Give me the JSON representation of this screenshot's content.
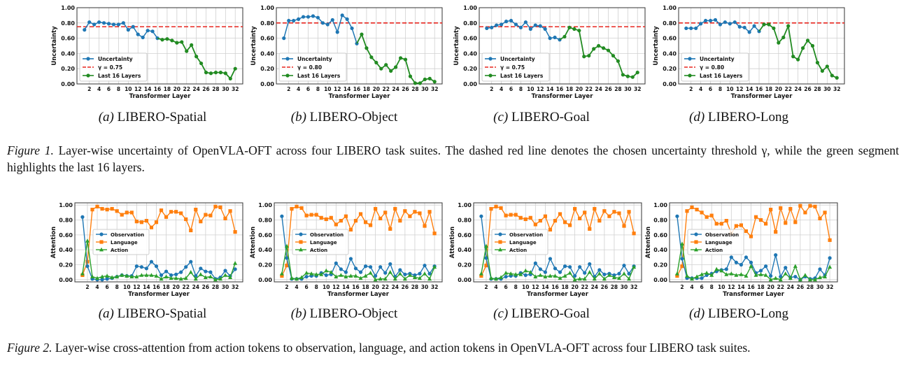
{
  "figure1": {
    "label": "Figure 1.",
    "caption": "Layer-wise uncertainty of OpenVLA-OFT across four LIBERO task suites. The dashed red line denotes the chosen uncertainty threshold γ, while the green segment highlights the last 16 layers.",
    "subfigures": [
      {
        "label": "(a)",
        "title": "LIBERO-Spatial"
      },
      {
        "label": "(b)",
        "title": "LIBERO-Object"
      },
      {
        "label": "(c)",
        "title": "LIBERO-Goal"
      },
      {
        "label": "(d)",
        "title": "LIBERO-Long"
      }
    ]
  },
  "figure2": {
    "label": "Figure 2.",
    "caption": "Layer-wise cross-attention from action tokens to observation, language, and action tokens in OpenVLA-OFT across four LIBERO task suites.",
    "subfigures": [
      {
        "label": "(a)",
        "title": "LIBERO-Spatial"
      },
      {
        "label": "(b)",
        "title": "LIBERO-Object"
      },
      {
        "label": "(c)",
        "title": "LIBERO-Goal"
      },
      {
        "label": "(d)",
        "title": "LIBERO-Long"
      }
    ]
  },
  "colors": {
    "blue": "#1f77b4",
    "orange": "#ff7f0e",
    "green": "#2ca02c",
    "darkgreen": "#228b22",
    "red": "#e8261f"
  },
  "chart_data": [
    {
      "type": "line",
      "xlabel": "Transformer Layer",
      "ylabel": "Uncertainty",
      "ylim": [
        0,
        1
      ],
      "yticks": [
        "0.00",
        "0.20",
        "0.40",
        "0.60",
        "0.80",
        "1.00"
      ],
      "xticks": [
        2,
        4,
        6,
        8,
        10,
        12,
        14,
        16,
        18,
        20,
        22,
        24,
        26,
        28,
        30,
        32
      ],
      "grid": true,
      "legend": "lower-left",
      "threshold": {
        "name": "γ = 0.75",
        "value": 0.75
      },
      "series": [
        {
          "name": "Uncertainty",
          "values": [
            0.71,
            0.81,
            0.78,
            0.81,
            0.8,
            0.79,
            0.78,
            0.78,
            0.8,
            0.71,
            0.75,
            0.65,
            0.61,
            0.7,
            0.69,
            0.6,
            0.58,
            0.59,
            0.57,
            0.54,
            0.55,
            0.43,
            0.51,
            0.36,
            0.27,
            0.15,
            0.14,
            0.15,
            0.15,
            0.14,
            0.07,
            0.2
          ]
        },
        {
          "name": "Last 16 Layers"
        }
      ]
    },
    {
      "type": "line",
      "xlabel": "Transformer Layer",
      "ylabel": "Uncertainty",
      "ylim": [
        0,
        1
      ],
      "yticks": [
        "0.00",
        "0.20",
        "0.40",
        "0.60",
        "0.80",
        "1.00"
      ],
      "xticks": [
        2,
        4,
        6,
        8,
        10,
        12,
        14,
        16,
        18,
        20,
        22,
        24,
        26,
        28,
        30,
        32
      ],
      "grid": true,
      "legend": "lower-left",
      "threshold": {
        "name": "γ = 0.80",
        "value": 0.8
      },
      "series": [
        {
          "name": "Uncertainty",
          "values": [
            0.6,
            0.83,
            0.83,
            0.85,
            0.88,
            0.88,
            0.89,
            0.87,
            0.8,
            0.78,
            0.84,
            0.68,
            0.9,
            0.85,
            0.73,
            0.53,
            0.65,
            0.47,
            0.35,
            0.28,
            0.2,
            0.25,
            0.17,
            0.22,
            0.34,
            0.32,
            0.1,
            0.01,
            0.01,
            0.06,
            0.07,
            0.03
          ]
        },
        {
          "name": "Last 16 Layers"
        }
      ]
    },
    {
      "type": "line",
      "xlabel": "Transformer Layer",
      "ylabel": "Uncertainty",
      "ylim": [
        0,
        1
      ],
      "yticks": [
        "0.00",
        "0.20",
        "0.40",
        "0.60",
        "0.80",
        "1.00"
      ],
      "xticks": [
        2,
        4,
        6,
        8,
        10,
        12,
        14,
        16,
        18,
        20,
        22,
        24,
        26,
        28,
        30,
        32
      ],
      "grid": true,
      "legend": "lower-left",
      "threshold": {
        "name": "γ = 0.75",
        "value": 0.75
      },
      "series": [
        {
          "name": "Uncertainty",
          "values": [
            0.73,
            0.74,
            0.77,
            0.78,
            0.82,
            0.83,
            0.78,
            0.74,
            0.81,
            0.72,
            0.77,
            0.76,
            0.72,
            0.6,
            0.61,
            0.58,
            0.62,
            0.74,
            0.72,
            0.7,
            0.36,
            0.37,
            0.46,
            0.5,
            0.47,
            0.44,
            0.37,
            0.3,
            0.12,
            0.1,
            0.09,
            0.15
          ]
        },
        {
          "name": "Last 16 Layers"
        }
      ]
    },
    {
      "type": "line",
      "xlabel": "Transformer Layer",
      "ylabel": "Uncertainty",
      "ylim": [
        0,
        1
      ],
      "yticks": [
        "0.00",
        "0.20",
        "0.40",
        "0.60",
        "0.80",
        "1.00"
      ],
      "xticks": [
        2,
        4,
        6,
        8,
        10,
        12,
        14,
        16,
        18,
        20,
        22,
        24,
        26,
        28,
        30,
        32
      ],
      "grid": true,
      "legend": "lower-left",
      "threshold": {
        "name": "γ = 0.80",
        "value": 0.8
      },
      "series": [
        {
          "name": "Uncertainty",
          "values": [
            0.73,
            0.73,
            0.73,
            0.79,
            0.83,
            0.83,
            0.84,
            0.78,
            0.81,
            0.79,
            0.81,
            0.75,
            0.74,
            0.68,
            0.76,
            0.69,
            0.78,
            0.78,
            0.73,
            0.54,
            0.61,
            0.76,
            0.36,
            0.32,
            0.47,
            0.57,
            0.5,
            0.28,
            0.17,
            0.23,
            0.11,
            0.08
          ]
        },
        {
          "name": "Last 16 Layers"
        }
      ]
    },
    {
      "type": "line",
      "xlabel": "Transformer Layer",
      "ylabel": "Attention",
      "ylim": [
        0,
        1
      ],
      "yticks": [
        "0.00",
        "0.20",
        "0.40",
        "0.60",
        "0.80",
        "1.00"
      ],
      "xticks": [
        2,
        4,
        6,
        8,
        10,
        12,
        14,
        16,
        18,
        20,
        22,
        24,
        26,
        28,
        30,
        32
      ],
      "grid": true,
      "legend": "center-left",
      "series": [
        {
          "name": "Observation",
          "values": [
            0.84,
            0.18,
            0.01,
            0.0,
            0.0,
            0.01,
            0.02,
            0.04,
            0.06,
            0.05,
            0.05,
            0.18,
            0.17,
            0.15,
            0.24,
            0.18,
            0.06,
            0.11,
            0.06,
            0.07,
            0.1,
            0.17,
            0.24,
            0.05,
            0.15,
            0.11,
            0.1,
            0.01,
            0.03,
            0.12,
            0.05,
            0.14
          ]
        },
        {
          "name": "Language",
          "values": [
            0.06,
            0.24,
            0.94,
            0.98,
            0.95,
            0.94,
            0.95,
            0.92,
            0.87,
            0.9,
            0.9,
            0.78,
            0.77,
            0.79,
            0.7,
            0.77,
            0.93,
            0.84,
            0.91,
            0.91,
            0.89,
            0.81,
            0.66,
            0.94,
            0.78,
            0.87,
            0.86,
            0.98,
            0.97,
            0.82,
            0.92,
            0.64
          ]
        },
        {
          "name": "Action",
          "values": [
            0.08,
            0.52,
            0.04,
            0.02,
            0.04,
            0.05,
            0.03,
            0.04,
            0.06,
            0.05,
            0.04,
            0.04,
            0.06,
            0.06,
            0.06,
            0.05,
            0.01,
            0.04,
            0.02,
            0.02,
            0.01,
            0.02,
            0.1,
            0.01,
            0.07,
            0.03,
            0.04,
            0.0,
            0.01,
            0.06,
            0.03,
            0.22
          ]
        }
      ]
    },
    {
      "type": "line",
      "xlabel": "Transformer Layer",
      "ylabel": "Attention",
      "ylim": [
        0,
        1
      ],
      "yticks": [
        "0.00",
        "0.20",
        "0.40",
        "0.60",
        "0.80",
        "1.00"
      ],
      "xticks": [
        2,
        4,
        6,
        8,
        10,
        12,
        14,
        16,
        18,
        20,
        22,
        24,
        26,
        28,
        30,
        32
      ],
      "grid": true,
      "legend": "center-left",
      "series": [
        {
          "name": "Observation",
          "values": [
            0.85,
            0.29,
            0.01,
            0.01,
            0.01,
            0.04,
            0.05,
            0.05,
            0.09,
            0.06,
            0.07,
            0.22,
            0.14,
            0.1,
            0.28,
            0.15,
            0.1,
            0.18,
            0.17,
            0.05,
            0.17,
            0.09,
            0.21,
            0.04,
            0.13,
            0.07,
            0.08,
            0.06,
            0.08,
            0.19,
            0.08,
            0.18
          ]
        },
        {
          "name": "Language",
          "values": [
            0.05,
            0.19,
            0.95,
            0.98,
            0.96,
            0.86,
            0.87,
            0.87,
            0.83,
            0.81,
            0.83,
            0.74,
            0.79,
            0.85,
            0.67,
            0.79,
            0.88,
            0.77,
            0.73,
            0.95,
            0.82,
            0.9,
            0.68,
            0.95,
            0.79,
            0.92,
            0.85,
            0.91,
            0.89,
            0.72,
            0.91,
            0.62
          ]
        },
        {
          "name": "Action",
          "values": [
            0.08,
            0.45,
            0.02,
            0.01,
            0.03,
            0.09,
            0.08,
            0.07,
            0.07,
            0.12,
            0.1,
            0.04,
            0.06,
            0.04,
            0.05,
            0.05,
            0.02,
            0.05,
            0.09,
            0.0,
            0.01,
            0.01,
            0.1,
            0.01,
            0.08,
            0.01,
            0.06,
            0.03,
            0.02,
            0.08,
            0.01,
            0.17
          ]
        }
      ]
    },
    {
      "type": "line",
      "xlabel": "Transformer Layer",
      "ylabel": "Attention",
      "ylim": [
        0,
        1
      ],
      "yticks": [
        "0.00",
        "0.20",
        "0.40",
        "0.60",
        "0.80",
        "1.00"
      ],
      "xticks": [
        2,
        4,
        6,
        8,
        10,
        12,
        14,
        16,
        18,
        20,
        22,
        24,
        26,
        28,
        30,
        32
      ],
      "grid": true,
      "legend": "center-left",
      "series": [
        {
          "name": "Observation",
          "values": [
            0.85,
            0.29,
            0.01,
            0.01,
            0.01,
            0.04,
            0.05,
            0.05,
            0.09,
            0.06,
            0.07,
            0.22,
            0.14,
            0.1,
            0.28,
            0.15,
            0.1,
            0.18,
            0.17,
            0.05,
            0.17,
            0.09,
            0.21,
            0.04,
            0.13,
            0.07,
            0.08,
            0.06,
            0.08,
            0.19,
            0.08,
            0.18
          ]
        },
        {
          "name": "Language",
          "values": [
            0.05,
            0.19,
            0.95,
            0.98,
            0.96,
            0.86,
            0.87,
            0.87,
            0.83,
            0.81,
            0.83,
            0.74,
            0.79,
            0.85,
            0.67,
            0.79,
            0.88,
            0.77,
            0.73,
            0.95,
            0.82,
            0.9,
            0.68,
            0.95,
            0.79,
            0.92,
            0.85,
            0.91,
            0.89,
            0.72,
            0.91,
            0.62
          ]
        },
        {
          "name": "Action",
          "values": [
            0.08,
            0.45,
            0.02,
            0.01,
            0.03,
            0.09,
            0.08,
            0.07,
            0.07,
            0.12,
            0.1,
            0.04,
            0.06,
            0.04,
            0.05,
            0.05,
            0.02,
            0.05,
            0.09,
            0.0,
            0.01,
            0.01,
            0.1,
            0.01,
            0.08,
            0.01,
            0.06,
            0.03,
            0.02,
            0.08,
            0.01,
            0.17
          ]
        }
      ]
    },
    {
      "type": "line",
      "xlabel": "Transformer Layer",
      "ylabel": "Attention",
      "ylim": [
        0,
        1
      ],
      "yticks": [
        "0.00",
        "0.20",
        "0.40",
        "0.60",
        "0.80",
        "1.00"
      ],
      "xticks": [
        2,
        4,
        6,
        8,
        10,
        12,
        14,
        16,
        18,
        20,
        22,
        24,
        26,
        28,
        30,
        32
      ],
      "grid": true,
      "legend": "center-left",
      "series": [
        {
          "name": "Observation",
          "values": [
            0.85,
            0.28,
            0.02,
            0.02,
            0.02,
            0.02,
            0.06,
            0.08,
            0.11,
            0.13,
            0.14,
            0.3,
            0.23,
            0.2,
            0.3,
            0.23,
            0.09,
            0.12,
            0.18,
            0.05,
            0.33,
            0.04,
            0.16,
            0.03,
            0.04,
            0.0,
            0.04,
            0.01,
            0.02,
            0.14,
            0.06,
            0.29
          ]
        },
        {
          "name": "Language",
          "values": [
            0.05,
            0.18,
            0.92,
            0.97,
            0.94,
            0.9,
            0.84,
            0.86,
            0.75,
            0.75,
            0.79,
            0.62,
            0.72,
            0.73,
            0.65,
            0.58,
            0.84,
            0.8,
            0.75,
            0.94,
            0.64,
            0.96,
            0.76,
            0.95,
            0.77,
            0.99,
            0.9,
            0.99,
            0.98,
            0.82,
            0.9,
            0.53
          ]
        },
        {
          "name": "Action",
          "values": [
            0.08,
            0.48,
            0.05,
            0.01,
            0.04,
            0.07,
            0.09,
            0.06,
            0.14,
            0.12,
            0.07,
            0.08,
            0.06,
            0.07,
            0.05,
            0.18,
            0.06,
            0.07,
            0.06,
            0.0,
            0.02,
            0.0,
            0.08,
            0.02,
            0.18,
            0.0,
            0.06,
            0.0,
            0.0,
            0.03,
            0.04,
            0.17
          ]
        }
      ]
    }
  ]
}
